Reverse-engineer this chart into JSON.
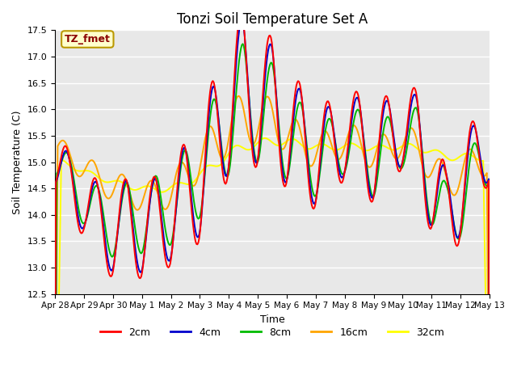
{
  "title": "Tonzi Soil Temperature Set A",
  "xlabel": "Time",
  "ylabel": "Soil Temperature (C)",
  "ylim": [
    12.5,
    17.5
  ],
  "annotation": "TZ_fmet",
  "annotation_color": "#8B0000",
  "annotation_bg": "#FFFFCC",
  "bg_color": "#E8E8E8",
  "grid_color": "#FFFFFF",
  "series_colors": {
    "2cm": "#FF0000",
    "4cm": "#0000CC",
    "8cm": "#00BB00",
    "16cm": "#FFA500",
    "32cm": "#FFFF00"
  },
  "x_ticks": [
    "Apr 28",
    "Apr 29",
    "Apr 30",
    "May 1",
    "May 2",
    "May 3",
    "May 4",
    "May 5",
    "May 6",
    "May 7",
    "May 8",
    "May 9",
    "May 10",
    "May 11",
    "May 12",
    "May 13"
  ],
  "days": 15,
  "n_points": 480
}
